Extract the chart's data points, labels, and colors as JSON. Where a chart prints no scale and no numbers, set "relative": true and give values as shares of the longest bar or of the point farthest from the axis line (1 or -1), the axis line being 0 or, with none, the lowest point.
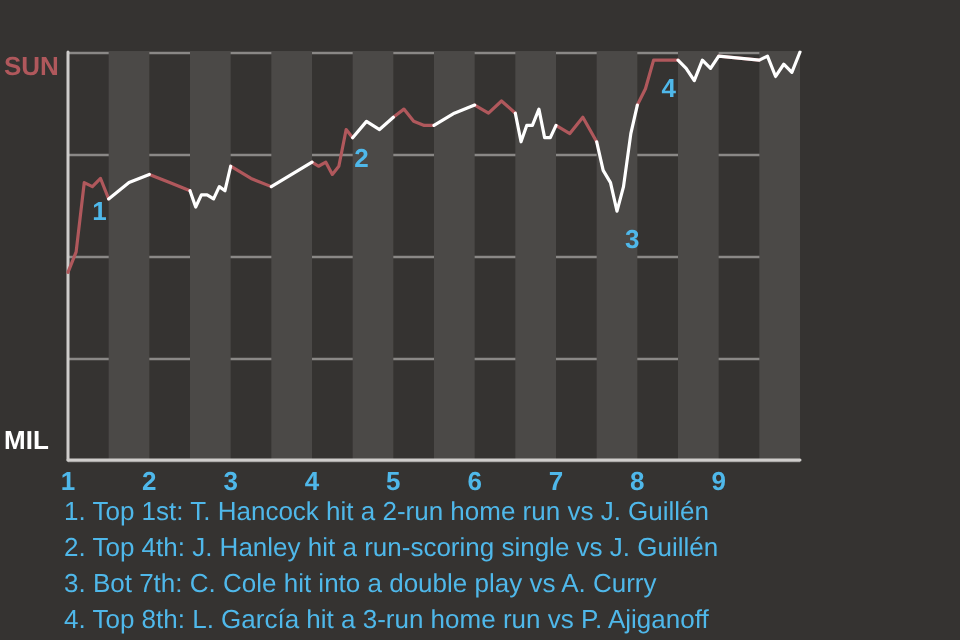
{
  "chart_data": {
    "type": "line",
    "relative": true,
    "grid": "y",
    "x": [
      1.0,
      1.1,
      1.2,
      1.3,
      1.4,
      1.5,
      1.75,
      2.0,
      2.25,
      2.5,
      2.57,
      2.64,
      2.71,
      2.79,
      2.86,
      2.93,
      3.0,
      3.25,
      3.5,
      3.75,
      4.0,
      4.08,
      4.17,
      4.25,
      4.33,
      4.42,
      4.5,
      4.67,
      4.83,
      5.0,
      5.13,
      5.25,
      5.38,
      5.5,
      5.75,
      6.0,
      6.17,
      6.33,
      6.5,
      6.57,
      6.64,
      6.71,
      6.79,
      6.86,
      6.93,
      7.0,
      7.17,
      7.33,
      7.5,
      7.58,
      7.67,
      7.75,
      7.83,
      7.92,
      8.0,
      8.1,
      8.2,
      8.3,
      8.4,
      8.5,
      8.6,
      8.7,
      8.8,
      8.9,
      9.0,
      9.5,
      9.6,
      9.7,
      9.8,
      9.9,
      10.0
    ],
    "xlim": [
      1,
      10
    ],
    "xticks": [
      1,
      2,
      3,
      4,
      5,
      6,
      7,
      8,
      9
    ],
    "series": [
      {
        "color": "#b0585c",
        "values": [
          0.46,
          0.51,
          0.68,
          0.67,
          0.69,
          0.64,
          null,
          0.7,
          0.68,
          0.66,
          null,
          null,
          null,
          null,
          null,
          null,
          0.72,
          0.69,
          0.67,
          null,
          0.73,
          0.72,
          0.73,
          0.7,
          0.72,
          0.81,
          0.79,
          null,
          null,
          0.84,
          0.86,
          0.83,
          0.82,
          0.82,
          null,
          0.87,
          0.85,
          0.88,
          0.85,
          null,
          null,
          null,
          null,
          null,
          null,
          0.82,
          0.8,
          0.84,
          0.78,
          null,
          null,
          null,
          null,
          null,
          0.87,
          0.91,
          0.98,
          0.98,
          0.98,
          0.98,
          null,
          null,
          null,
          null,
          0.99,
          0.98,
          null,
          null,
          null,
          null,
          null
        ]
      },
      {
        "color": "#ffffff",
        "values": [
          null,
          null,
          null,
          null,
          null,
          0.64,
          0.68,
          0.7,
          null,
          0.66,
          0.62,
          0.65,
          0.65,
          0.64,
          0.67,
          0.66,
          0.72,
          null,
          0.67,
          0.7,
          0.73,
          null,
          null,
          null,
          null,
          null,
          0.79,
          0.83,
          0.81,
          0.84,
          null,
          null,
          null,
          0.82,
          0.85,
          0.87,
          null,
          null,
          0.85,
          0.78,
          0.82,
          0.82,
          0.86,
          0.79,
          0.79,
          0.82,
          null,
          null,
          0.78,
          0.71,
          0.68,
          0.61,
          0.67,
          0.8,
          0.87,
          null,
          null,
          null,
          null,
          0.98,
          0.96,
          0.93,
          0.98,
          0.96,
          0.99,
          0.98,
          0.99,
          0.94,
          0.97,
          0.95,
          1.0
        ]
      }
    ],
    "bands": [
      {
        "axis": "x",
        "from": 1.5,
        "to": 2,
        "color": "#4b4947"
      },
      {
        "axis": "x",
        "from": 2.5,
        "to": 3,
        "color": "#4b4947"
      },
      {
        "axis": "x",
        "from": 3.5,
        "to": 4,
        "color": "#4b4947"
      },
      {
        "axis": "x",
        "from": 4.5,
        "to": 5,
        "color": "#4b4947"
      },
      {
        "axis": "x",
        "from": 5.5,
        "to": 6,
        "color": "#4b4947"
      },
      {
        "axis": "x",
        "from": 6.5,
        "to": 7,
        "color": "#4b4947"
      },
      {
        "axis": "x",
        "from": 7.5,
        "to": 8,
        "color": "#4b4947"
      },
      {
        "axis": "x",
        "from": 8.5,
        "to": 9,
        "color": "#4b4947"
      },
      {
        "axis": "x",
        "from": 9.5,
        "to": 10,
        "color": "#4b4947"
      }
    ],
    "annotations": [
      "SUN",
      "MIL",
      {
        "text": "1",
        "x": 1.2,
        "y": 0.68
      },
      {
        "text": "2",
        "x": 4.42,
        "y": 0.81
      },
      {
        "text": "3",
        "x": 7.75,
        "y": 0.61
      },
      {
        "text": "4",
        "x": 8.2,
        "y": 0.98
      },
      "1. Top 1st: T. Hancock hit a 2-run home run vs J. Guillén",
      "2. Top 4th: J. Hanley hit a run-scoring single vs J. Guillén",
      "3. Bot 7th: C. Cole hit into a double play vs A. Curry",
      "4. Top 8th: L. García hit a 3-run home run vs P. Ajiganoff"
    ]
  }
}
